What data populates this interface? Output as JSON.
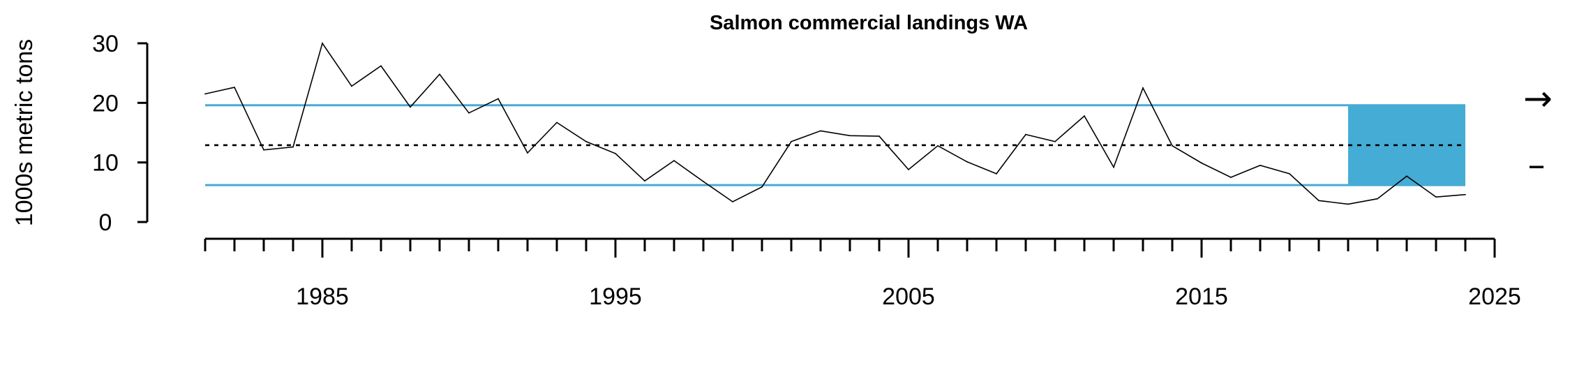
{
  "chart_data": {
    "type": "line",
    "title": "Salmon commercial landings WA",
    "ylabel": "1000s metric tons",
    "xlabel": "",
    "xlim": [
      1981,
      2025
    ],
    "ylim": [
      0,
      30
    ],
    "y_ticks": [
      0,
      10,
      20,
      30
    ],
    "x_tick_labels": [
      "1985",
      "1995",
      "2005",
      "2015",
      "2025"
    ],
    "x_minor_ticks_every": 1,
    "series": [
      {
        "x": [
          1981,
          1982,
          1983,
          1984,
          1985,
          1986,
          1987,
          1988,
          1989,
          1990,
          1991,
          1992,
          1993,
          1994,
          1995,
          1996,
          1997,
          1998,
          1999,
          2000,
          2001,
          2002,
          2003,
          2004,
          2005,
          2006,
          2007,
          2008,
          2009,
          2010,
          2011,
          2012,
          2013,
          2014,
          2015,
          2016,
          2017,
          2018,
          2019,
          2020,
          2021,
          2022,
          2023,
          2024
        ],
        "values": [
          21.5,
          22.6,
          12.1,
          12.6,
          30.0,
          22.8,
          26.2,
          19.3,
          24.8,
          18.3,
          20.7,
          11.6,
          16.7,
          13.5,
          11.5,
          6.9,
          10.3,
          6.8,
          3.4,
          5.9,
          13.5,
          15.3,
          14.5,
          14.4,
          8.8,
          12.8,
          10.1,
          8.1,
          14.7,
          13.5,
          17.8,
          9.2,
          22.5,
          12.8,
          9.9,
          7.5,
          9.5,
          8.1,
          3.6,
          3.0,
          3.9,
          7.7,
          4.2,
          4.6
        ]
      }
    ],
    "mean": 12.9,
    "upper_sd": 19.6,
    "lower_sd": 6.2,
    "highlight_window": [
      2020,
      2024
    ],
    "trend_symbol": "→",
    "mean_symbol": "–",
    "colors": {
      "accent": "#45acd5",
      "line": "#000000"
    },
    "grid": false
  }
}
